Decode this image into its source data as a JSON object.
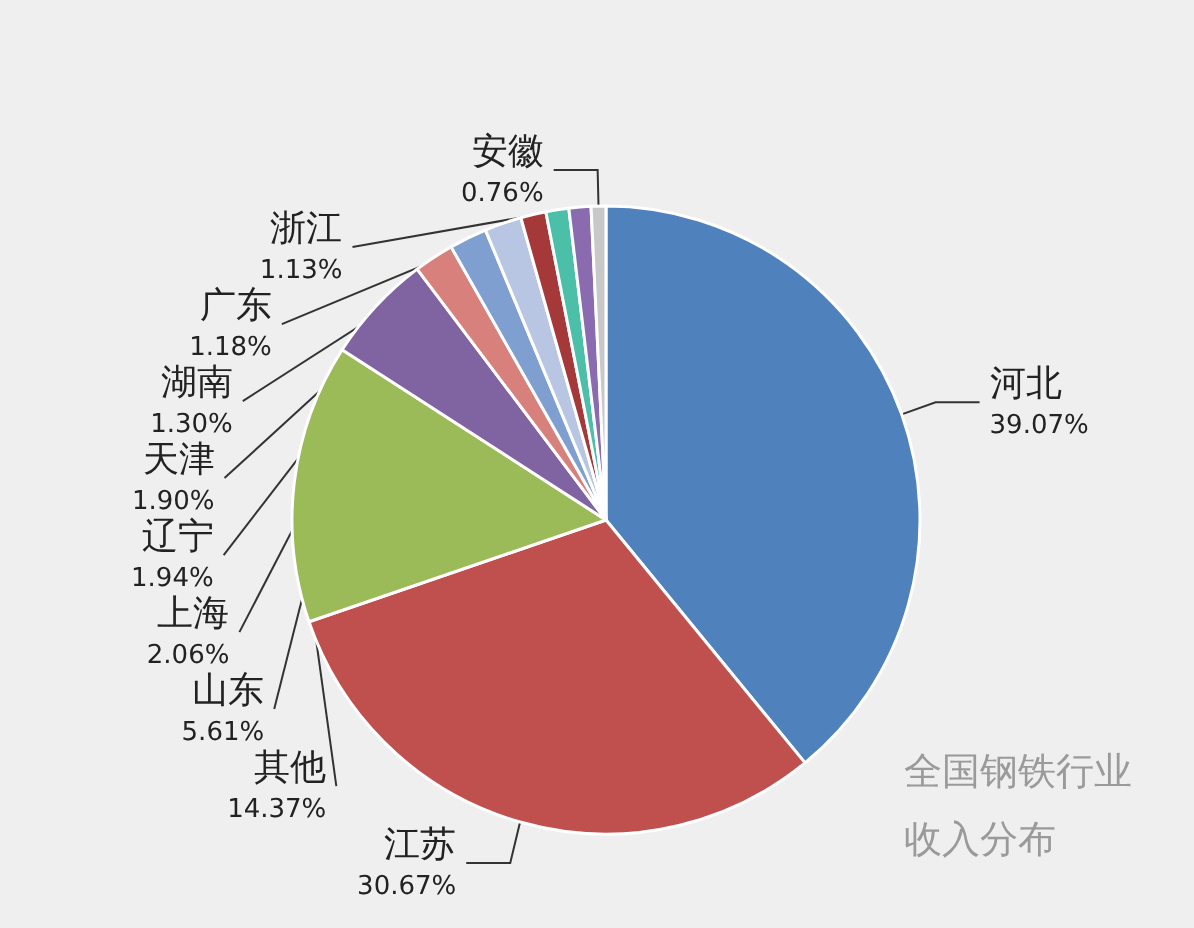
{
  "chart_data": {
    "type": "pie",
    "title": "全国钢铁行业收入分布",
    "categories": [
      "河北",
      "江苏",
      "其他",
      "山东",
      "上海",
      "辽宁",
      "天津",
      "湖南",
      "广东",
      "浙江",
      "安徽"
    ],
    "values": [
      39.07,
      30.67,
      14.37,
      5.61,
      2.06,
      1.94,
      1.9,
      1.3,
      1.18,
      1.13,
      0.76
    ],
    "colors": [
      "#4f81bd",
      "#c0504d",
      "#9bbb59",
      "#8064a2",
      "#d7807c",
      "#7f9fd0",
      "#b9c6e3",
      "#a5393a",
      "#4bbfa8",
      "#8b6bb0",
      "#c8c8c8"
    ],
    "value_labels": [
      "39.07%",
      "30.67%",
      "14.37%",
      "5.61%",
      "2.06%",
      "1.94%",
      "1.90%",
      "1.30%",
      "1.18%",
      "1.13%",
      "0.76%"
    ],
    "legend": false
  }
}
